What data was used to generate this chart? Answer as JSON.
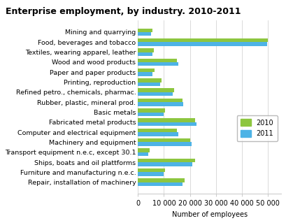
{
  "title": "Enterprise employment, by industry. 2010-2011",
  "categories": [
    "Repair, installation of machinery",
    "Furniture and manufacturing n.e.c.",
    "Ships, boats and oil plattforms",
    "Transport equipment n.e.c, except 30.1",
    "Machinery and equipment",
    "Computer and electrical equipment",
    "Fabricated metal products",
    "Basic metals",
    "Rubber, plastic, mineral prod.",
    "Refined petro., chemicals, pharmac.",
    "Printing, reproduction",
    "Paper and paper products",
    "Wood and wood products",
    "Textiles, wearing apparel, leather",
    "Food, beverages and tobacco",
    "Mining and quarrying"
  ],
  "values_2010": [
    18000,
    10500,
    22000,
    4500,
    20000,
    15000,
    22000,
    10500,
    17000,
    14000,
    9000,
    6500,
    15000,
    6000,
    50000,
    5500
  ],
  "values_2011": [
    17000,
    10000,
    21000,
    4000,
    20500,
    15500,
    22500,
    10000,
    17500,
    13500,
    8500,
    5500,
    15500,
    5500,
    49500,
    5000
  ],
  "color_2010": "#8DC63F",
  "color_2011": "#4DB3E6",
  "xlabel": "Number of employees",
  "xlim": [
    0,
    55000
  ],
  "xticks": [
    0,
    10000,
    20000,
    30000,
    40000,
    50000
  ],
  "xticklabels": [
    "0",
    "10 000",
    "20 000",
    "30 000",
    "40 000",
    "50 000"
  ],
  "legend_labels": [
    "2010",
    "2011"
  ],
  "background_color": "#ffffff",
  "grid_color": "#cccccc",
  "title_fontsize": 9,
  "label_fontsize": 6.8,
  "tick_fontsize": 7
}
